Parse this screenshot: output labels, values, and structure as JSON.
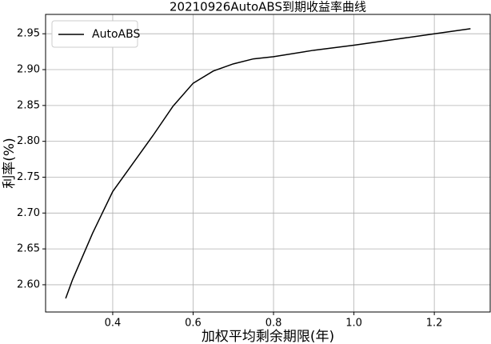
{
  "chart_data": {
    "type": "line",
    "title": "20210926AutoABS到期收益率曲线",
    "x_label": "加权平均剩余期限(年)",
    "y_label": "利率(%)",
    "x": [
      0.283,
      0.3,
      0.35,
      0.4,
      0.45,
      0.5,
      0.55,
      0.6,
      0.65,
      0.7,
      0.75,
      0.8,
      0.9,
      1.0,
      1.1,
      1.2,
      1.29
    ],
    "series": [
      {
        "name": "AutoABS",
        "color": "#000000",
        "values": [
          2.581,
          2.607,
          2.672,
          2.73,
          2.769,
          2.808,
          2.849,
          2.881,
          2.898,
          2.908,
          2.915,
          2.918,
          2.927,
          2.934,
          2.942,
          2.95,
          2.957
        ]
      }
    ],
    "xlim": [
      0.233,
      1.339
    ],
    "ylim": [
      2.562,
      2.977
    ],
    "xticks": [
      0.4,
      0.6,
      0.8,
      {
        "value": 1.0,
        "label": "1.0"
      },
      1.2
    ],
    "yticks": [
      {
        "value": 2.6,
        "label": "2.60"
      },
      2.65,
      {
        "value": 2.7,
        "label": "2.70"
      },
      2.75,
      {
        "value": 2.8,
        "label": "2.80"
      },
      2.85,
      {
        "value": 2.9,
        "label": "2.90"
      },
      2.95
    ],
    "grid": true,
    "legend": "upper-left"
  }
}
